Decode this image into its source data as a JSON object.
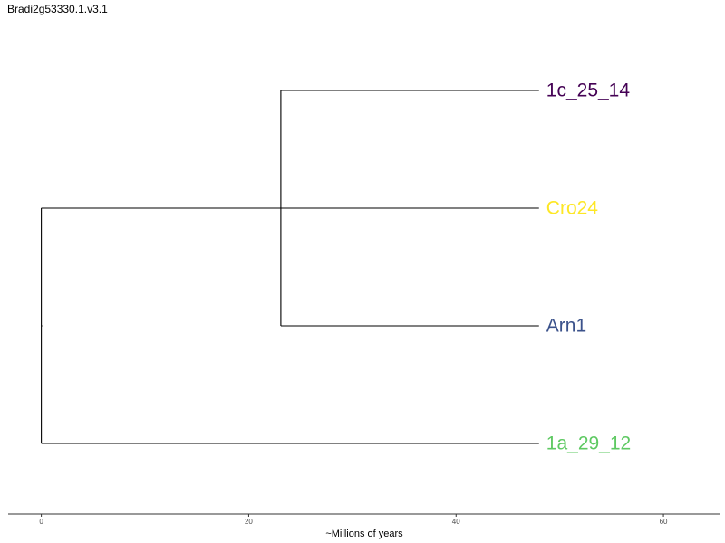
{
  "title": "Bradi2g53330.1.v3.1",
  "chart_data": {
    "type": "phylogenetic-tree",
    "title": "Bradi2g53330.1.v3.1",
    "xlabel": "~Millions of years",
    "ylabel": "",
    "xlim": [
      -3.2,
      65.5
    ],
    "x_ticks": [
      0,
      20,
      40,
      60
    ],
    "x_tick_labels": [
      "0",
      "20",
      "40",
      "60"
    ],
    "grid": false,
    "nodes": [
      {
        "id": "root",
        "x": 0
      },
      {
        "id": "inner",
        "x": 23.1
      }
    ],
    "leaves": [
      {
        "label": "1c_25_14",
        "x": 48,
        "parent": "inner",
        "order": 1,
        "color": "#440154"
      },
      {
        "label": "Cro24",
        "x": 48,
        "parent": "root",
        "order": 2,
        "color": "#FDE725"
      },
      {
        "label": "Arn1",
        "x": 48,
        "parent": "inner",
        "order": 3,
        "color": "#3B528B"
      },
      {
        "label": "1a_29_12",
        "x": 48,
        "parent": "root",
        "order": 4,
        "color": "#5EC962"
      }
    ],
    "edges": [
      {
        "from": "root",
        "to": "inner"
      },
      {
        "from": "root",
        "to": "Cro24"
      },
      {
        "from": "root",
        "to": "1a_29_12"
      },
      {
        "from": "inner",
        "to": "1c_25_14"
      },
      {
        "from": "inner",
        "to": "Arn1"
      }
    ],
    "line_color": "#000000",
    "axis_color": "#333333"
  }
}
